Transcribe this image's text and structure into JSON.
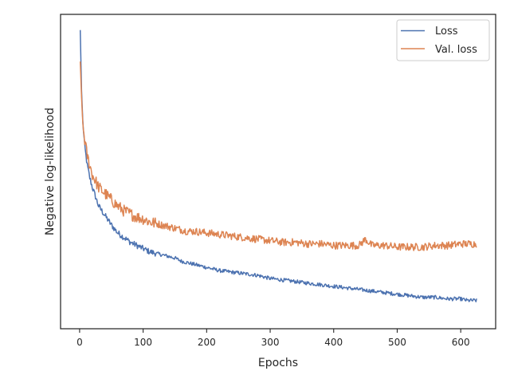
{
  "chart_data": {
    "type": "line",
    "title": "",
    "xlabel": "Epochs",
    "ylabel": "Negative log-likelihood",
    "xlim": [
      -30,
      655
    ],
    "ylim": [
      0,
      1
    ],
    "x_ticks": [
      0,
      100,
      200,
      300,
      400,
      500,
      600
    ],
    "y_ticks_shown": false,
    "legend_position": "top-right",
    "grid": false,
    "series": [
      {
        "name": "Loss",
        "color": "#4c72b0",
        "x": [
          1,
          3,
          5,
          8,
          12,
          16,
          20,
          25,
          30,
          40,
          50,
          60,
          70,
          80,
          90,
          100,
          110,
          120,
          130,
          140,
          150,
          160,
          170,
          180,
          200,
          220,
          240,
          260,
          280,
          300,
          320,
          340,
          360,
          380,
          400,
          420,
          440,
          460,
          480,
          500,
          520,
          540,
          560,
          580,
          600,
          610,
          620,
          625
        ],
        "y": [
          0.95,
          0.76,
          0.66,
          0.58,
          0.52,
          0.48,
          0.45,
          0.42,
          0.39,
          0.36,
          0.33,
          0.305,
          0.29,
          0.275,
          0.265,
          0.255,
          0.245,
          0.24,
          0.235,
          0.23,
          0.225,
          0.215,
          0.21,
          0.205,
          0.195,
          0.185,
          0.18,
          0.175,
          0.17,
          0.16,
          0.155,
          0.15,
          0.145,
          0.14,
          0.135,
          0.13,
          0.125,
          0.12,
          0.115,
          0.11,
          0.105,
          0.1,
          0.1,
          0.095,
          0.095,
          0.09,
          0.09,
          0.09
        ],
        "noise": 0.006
      },
      {
        "name": "Val. loss",
        "color": "#dd8452",
        "x": [
          1,
          3,
          5,
          8,
          12,
          16,
          20,
          25,
          30,
          40,
          50,
          60,
          70,
          80,
          90,
          100,
          110,
          120,
          130,
          140,
          150,
          160,
          170,
          180,
          200,
          220,
          240,
          260,
          280,
          300,
          320,
          340,
          360,
          380,
          400,
          420,
          440,
          450,
          460,
          480,
          500,
          520,
          540,
          560,
          580,
          600,
          610,
          620,
          625
        ],
        "y": [
          0.85,
          0.74,
          0.65,
          0.6,
          0.55,
          0.52,
          0.49,
          0.47,
          0.45,
          0.43,
          0.41,
          0.39,
          0.375,
          0.365,
          0.355,
          0.35,
          0.34,
          0.335,
          0.33,
          0.325,
          0.32,
          0.315,
          0.31,
          0.31,
          0.305,
          0.3,
          0.295,
          0.29,
          0.285,
          0.28,
          0.275,
          0.275,
          0.27,
          0.27,
          0.265,
          0.265,
          0.265,
          0.285,
          0.265,
          0.265,
          0.26,
          0.26,
          0.26,
          0.265,
          0.265,
          0.27,
          0.27,
          0.27,
          0.27
        ],
        "noise": 0.012
      }
    ]
  }
}
